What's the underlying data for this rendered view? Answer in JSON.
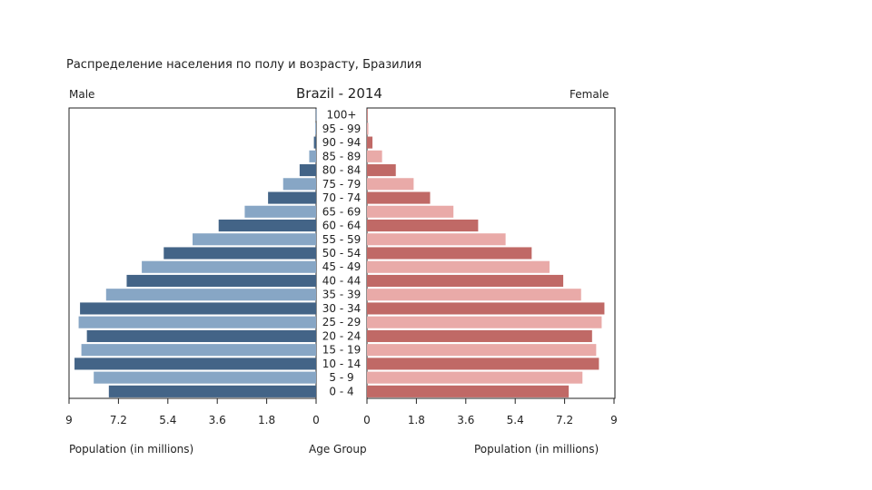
{
  "heading": "Распределение населения по полу и возрасту, Бразилия",
  "chart_data": {
    "type": "bar",
    "title": "Brazil - 2014",
    "left_label": "Male",
    "right_label": "Female",
    "xlabel_left": "Population (in millions)",
    "xlabel_center": "Age Group",
    "xlabel_right": "Population (in millions)",
    "xlim": [
      0,
      9
    ],
    "tick_labels_left": [
      "9",
      "7.2",
      "5.4",
      "3.6",
      "1.8",
      "0"
    ],
    "tick_values_left": [
      9,
      7.2,
      5.4,
      3.6,
      1.8,
      0
    ],
    "tick_labels_right": [
      "0",
      "1.8",
      "3.6",
      "5.4",
      "7.2",
      "9"
    ],
    "tick_values_right": [
      0,
      1.8,
      3.6,
      5.4,
      7.2,
      9
    ],
    "categories": [
      "100+",
      "95 - 99",
      "90 - 94",
      "85 - 89",
      "80 - 84",
      "75 - 79",
      "70 - 74",
      "65 - 69",
      "60 - 64",
      "55 - 59",
      "50 - 54",
      "45 - 49",
      "40 - 44",
      "35 - 39",
      "30 - 34",
      "25 - 29",
      "20 - 24",
      "15 - 19",
      "10 - 14",
      "5 - 9",
      "0 - 4"
    ],
    "series": [
      {
        "name": "Male",
        "values": [
          0.01,
          0.03,
          0.08,
          0.25,
          0.6,
          1.2,
          1.75,
          2.6,
          3.55,
          4.5,
          5.55,
          6.35,
          6.9,
          7.65,
          8.6,
          8.65,
          8.35,
          8.55,
          8.8,
          8.1,
          7.55
        ],
        "colors": [
          "#436487",
          "#87a6c5"
        ]
      },
      {
        "name": "Female",
        "values": [
          0.02,
          0.05,
          0.2,
          0.55,
          1.05,
          1.7,
          2.3,
          3.15,
          4.05,
          5.05,
          6.0,
          6.65,
          7.15,
          7.8,
          8.65,
          8.55,
          8.2,
          8.35,
          8.45,
          7.85,
          7.35
        ],
        "colors": [
          "#c06966",
          "#e9aaa8"
        ]
      }
    ]
  }
}
